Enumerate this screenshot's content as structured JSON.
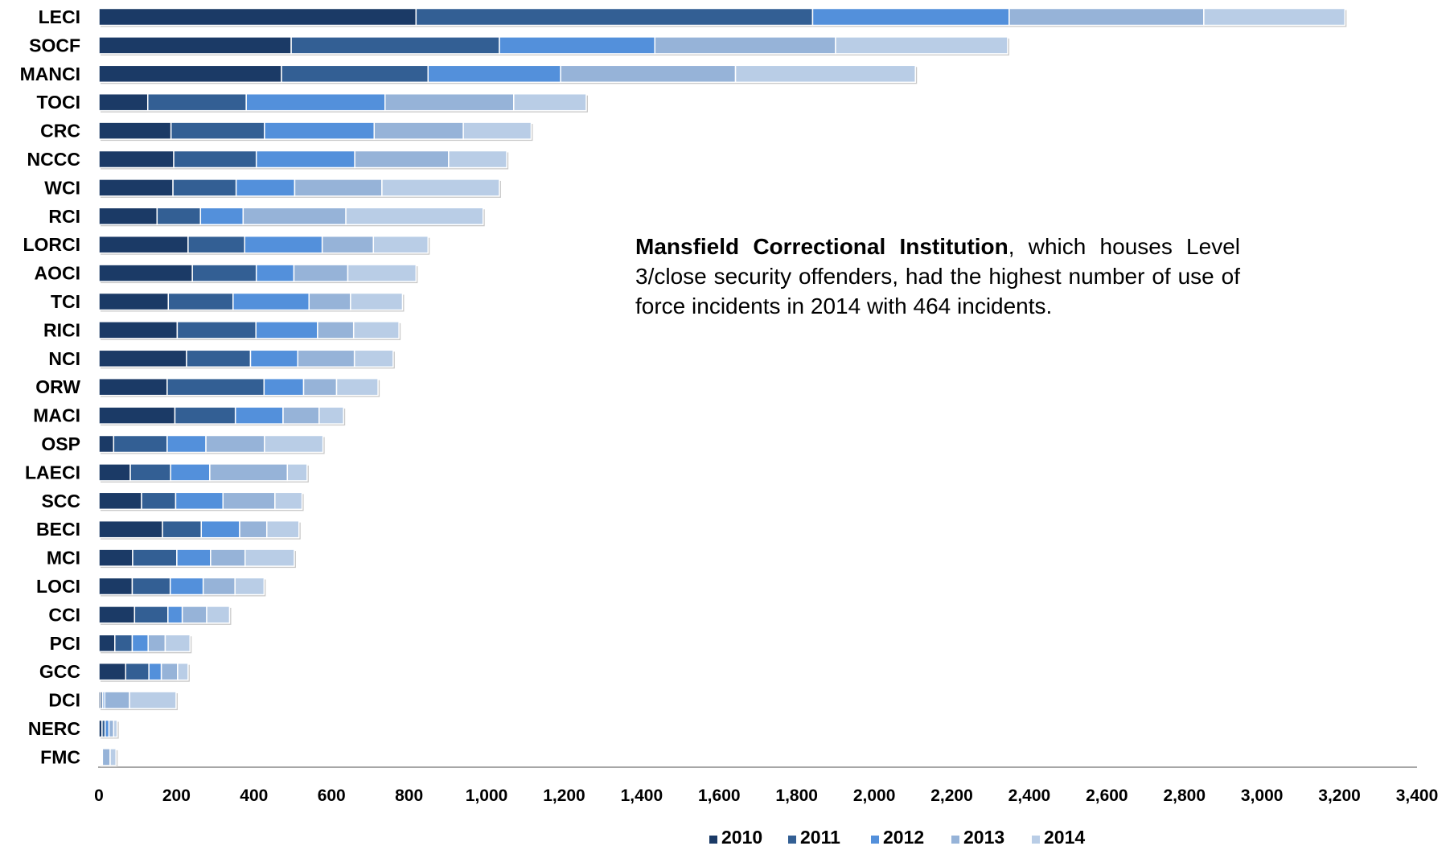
{
  "chart_data": {
    "type": "bar",
    "orientation": "horizontal",
    "stacked": true,
    "categories": [
      "LECI",
      "SOCF",
      "MANCI",
      "TOCI",
      "CRC",
      "NCCC",
      "WCI",
      "RCI",
      "LORCI",
      "AOCI",
      "TCI",
      "RICI",
      "NCI",
      "ORW",
      "MACI",
      "OSP",
      "LAECI",
      "SCC",
      "BECI",
      "MCI",
      "LOCI",
      "CCI",
      "PCI",
      "GCC",
      "DCI",
      "NERC",
      "FMC"
    ],
    "series": [
      {
        "name": "2010",
        "color": "#1b3a66",
        "values": [
          818,
          496,
          471,
          126,
          186,
          193,
          191,
          150,
          230,
          241,
          179,
          202,
          226,
          176,
          196,
          38,
          81,
          110,
          164,
          87,
          86,
          92,
          41,
          69,
          5,
          8,
          3
        ]
      },
      {
        "name": "2011",
        "color": "#335f94",
        "values": [
          1023,
          537,
          378,
          254,
          241,
          213,
          163,
          112,
          146,
          165,
          167,
          203,
          165,
          250,
          156,
          138,
          104,
          88,
          100,
          114,
          98,
          86,
          45,
          60,
          5,
          8,
          3
        ]
      },
      {
        "name": "2012",
        "color": "#5390db",
        "values": [
          507,
          401,
          342,
          358,
          283,
          254,
          151,
          110,
          200,
          97,
          196,
          159,
          122,
          102,
          123,
          100,
          101,
          122,
          99,
          87,
          85,
          37,
          41,
          32,
          5,
          10,
          3
        ]
      },
      {
        "name": "2013",
        "color": "#96b3d8",
        "values": [
          502,
          466,
          451,
          332,
          230,
          242,
          225,
          265,
          132,
          139,
          107,
          93,
          146,
          85,
          93,
          151,
          200,
          134,
          70,
          89,
          82,
          63,
          44,
          42,
          64,
          12,
          20
        ]
      },
      {
        "name": "2014",
        "color": "#b9cde6",
        "values": [
          364,
          444,
          464,
          187,
          175,
          150,
          303,
          354,
          141,
          176,
          134,
          117,
          100,
          107,
          63,
          151,
          51,
          70,
          83,
          127,
          75,
          59,
          64,
          27,
          120,
          9,
          15
        ]
      }
    ],
    "xlim": [
      0,
      3400
    ],
    "xticks": [
      "0",
      "200",
      "400",
      "600",
      "800",
      "1,000",
      "1,200",
      "1,400",
      "1,600",
      "1,800",
      "2,000",
      "2,200",
      "2,400",
      "2,600",
      "2,800",
      "3,000",
      "3,200",
      "3,400"
    ],
    "xtick_values": [
      0,
      200,
      400,
      600,
      800,
      1000,
      1200,
      1400,
      1600,
      1800,
      2000,
      2200,
      2400,
      2600,
      2800,
      3000,
      3200,
      3400
    ],
    "legend_position": "bottom",
    "grid": false
  },
  "annotation": {
    "bold": "Mansfield Correctional Institution",
    "text": ", which houses Level 3/close security offenders, had the highest number of use of force incidents in 2014 with 464 incidents."
  }
}
